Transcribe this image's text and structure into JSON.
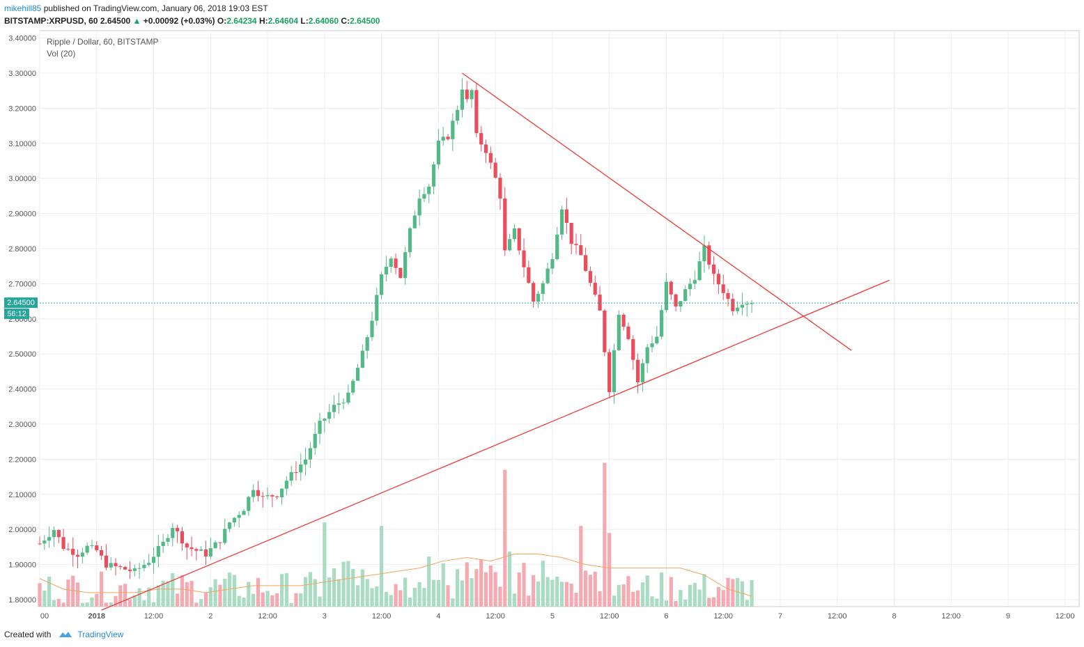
{
  "header": {
    "publisher": "mikehill85",
    "published_text": "published on TradingView.com, January 06, 2018 19:03 EST",
    "symbol": "BITSTAMP:XRPUSD, 60",
    "last": "2.64500",
    "change": "+0.00092 (+0.03%)",
    "o_label": "O:",
    "o_value": "2.64234",
    "h_label": "H:",
    "h_value": "2.64604",
    "l_label": "L:",
    "l_value": "2.64060",
    "c_label": "C:",
    "c_value": "2.64500"
  },
  "legend": {
    "title": "Ripple / Dollar, 60, BITSTAMP",
    "volume": "Vol (20)"
  },
  "price_tag": {
    "price": "2.64500",
    "countdown": "56:12"
  },
  "footer": {
    "created_with": "Created with",
    "brand": "TradingView"
  },
  "colors": {
    "up": "#53b987",
    "down": "#eb4d5c",
    "vol_up": "#a9dcc3",
    "vol_down": "#f5a9b1",
    "trendline": "#ef3b3b",
    "vol_ma": "#f5a45b",
    "grid": "#ecedef",
    "axis_text": "#555555",
    "price_line": "#26a69a"
  },
  "chart_data": {
    "type": "candlestick",
    "title": "Ripple / Dollar, 60, BITSTAMP",
    "y_ticks": [
      "1.80000",
      "1.90000",
      "2.00000",
      "2.10000",
      "2.20000",
      "2.30000",
      "2.40000",
      "2.50000",
      "2.60000",
      "2.70000",
      "2.80000",
      "2.90000",
      "3.00000",
      "3.10000",
      "3.20000",
      "3.30000",
      "3.40000"
    ],
    "ylim": [
      1.76,
      3.42
    ],
    "x_ticks": [
      {
        "label": "00",
        "t": 0
      },
      {
        "label": "2018",
        "t": 12
      },
      {
        "label": "12:00",
        "t": 24
      },
      {
        "label": "2",
        "t": 36
      },
      {
        "label": "12:00",
        "t": 48
      },
      {
        "label": "3",
        "t": 60
      },
      {
        "label": "12:00",
        "t": 72
      },
      {
        "label": "4",
        "t": 84
      },
      {
        "label": "12:00",
        "t": 96
      },
      {
        "label": "5",
        "t": 108
      },
      {
        "label": "12:00",
        "t": 120
      },
      {
        "label": "6",
        "t": 132
      },
      {
        "label": "12:00",
        "t": 144
      },
      {
        "label": "7",
        "t": 156
      },
      {
        "label": "12:00",
        "t": 168
      },
      {
        "label": "8",
        "t": 180
      },
      {
        "label": "12:00",
        "t": 192
      },
      {
        "label": "9",
        "t": 204
      },
      {
        "label": "12:00",
        "t": 216
      }
    ],
    "x_range_hours": [
      0,
      217.5
    ],
    "last_price": 2.645,
    "price_waypoints": [
      [
        0,
        1.96
      ],
      [
        3,
        2.0
      ],
      [
        5,
        1.95
      ],
      [
        8,
        1.93
      ],
      [
        10,
        1.95
      ],
      [
        12,
        1.94
      ],
      [
        14,
        1.9
      ],
      [
        17,
        1.89
      ],
      [
        20,
        1.88
      ],
      [
        23,
        1.91
      ],
      [
        26,
        1.96
      ],
      [
        28,
        2.01
      ],
      [
        31,
        1.95
      ],
      [
        35,
        1.93
      ],
      [
        38,
        1.97
      ],
      [
        40,
        2.02
      ],
      [
        43,
        2.06
      ],
      [
        45,
        2.12
      ],
      [
        47,
        2.09
      ],
      [
        50,
        2.1
      ],
      [
        52,
        2.14
      ],
      [
        56,
        2.2
      ],
      [
        59,
        2.3
      ],
      [
        62,
        2.35
      ],
      [
        65,
        2.38
      ],
      [
        68,
        2.5
      ],
      [
        70,
        2.6
      ],
      [
        72,
        2.72
      ],
      [
        74,
        2.78
      ],
      [
        76,
        2.72
      ],
      [
        78,
        2.85
      ],
      [
        80,
        2.95
      ],
      [
        82,
        2.98
      ],
      [
        84,
        3.1
      ],
      [
        86,
        3.12
      ],
      [
        88,
        3.2
      ],
      [
        89,
        3.26
      ],
      [
        90,
        3.22
      ],
      [
        91,
        3.25
      ],
      [
        92,
        3.12
      ],
      [
        94,
        3.08
      ],
      [
        96,
        3.0
      ],
      [
        97,
        2.95
      ],
      [
        98,
        2.79
      ],
      [
        100,
        2.85
      ],
      [
        102,
        2.75
      ],
      [
        104,
        2.65
      ],
      [
        106,
        2.7
      ],
      [
        108,
        2.78
      ],
      [
        110,
        2.92
      ],
      [
        112,
        2.82
      ],
      [
        114,
        2.78
      ],
      [
        116,
        2.7
      ],
      [
        118,
        2.62
      ],
      [
        120,
        2.4
      ],
      [
        122,
        2.62
      ],
      [
        124,
        2.55
      ],
      [
        126,
        2.42
      ],
      [
        128,
        2.52
      ],
      [
        130,
        2.55
      ],
      [
        132,
        2.7
      ],
      [
        134,
        2.63
      ],
      [
        136,
        2.68
      ],
      [
        138,
        2.72
      ],
      [
        140,
        2.8
      ],
      [
        142,
        2.72
      ],
      [
        144,
        2.68
      ],
      [
        146,
        2.63
      ],
      [
        148,
        2.65
      ],
      [
        150,
        2.645
      ]
    ],
    "volume_ma_waypoints": [
      [
        0,
        1.86
      ],
      [
        5,
        1.83
      ],
      [
        10,
        1.82
      ],
      [
        15,
        1.82
      ],
      [
        20,
        1.82
      ],
      [
        25,
        1.83
      ],
      [
        30,
        1.83
      ],
      [
        35,
        1.82
      ],
      [
        40,
        1.83
      ],
      [
        45,
        1.84
      ],
      [
        50,
        1.84
      ],
      [
        55,
        1.84
      ],
      [
        60,
        1.85
      ],
      [
        65,
        1.86
      ],
      [
        70,
        1.87
      ],
      [
        75,
        1.88
      ],
      [
        80,
        1.89
      ],
      [
        85,
        1.91
      ],
      [
        90,
        1.92
      ],
      [
        95,
        1.91
      ],
      [
        100,
        1.93
      ],
      [
        105,
        1.93
      ],
      [
        110,
        1.92
      ],
      [
        115,
        1.9
      ],
      [
        120,
        1.89
      ],
      [
        125,
        1.89
      ],
      [
        130,
        1.89
      ],
      [
        135,
        1.89
      ],
      [
        140,
        1.87
      ],
      [
        145,
        1.83
      ],
      [
        150,
        1.81
      ]
    ],
    "volume_spikes": [
      [
        98,
        2.17
      ],
      [
        119,
        2.19
      ],
      [
        114,
        2.01
      ],
      [
        72,
        2.01
      ],
      [
        60,
        2.02
      ],
      [
        119.5,
        1.99
      ]
    ],
    "trendlines": [
      {
        "name": "resistance",
        "from": [
          89,
          3.3
        ],
        "to": [
          171,
          2.51
        ]
      },
      {
        "name": "support",
        "from": [
          13,
          1.77
        ],
        "to": [
          179,
          2.71
        ]
      }
    ]
  }
}
